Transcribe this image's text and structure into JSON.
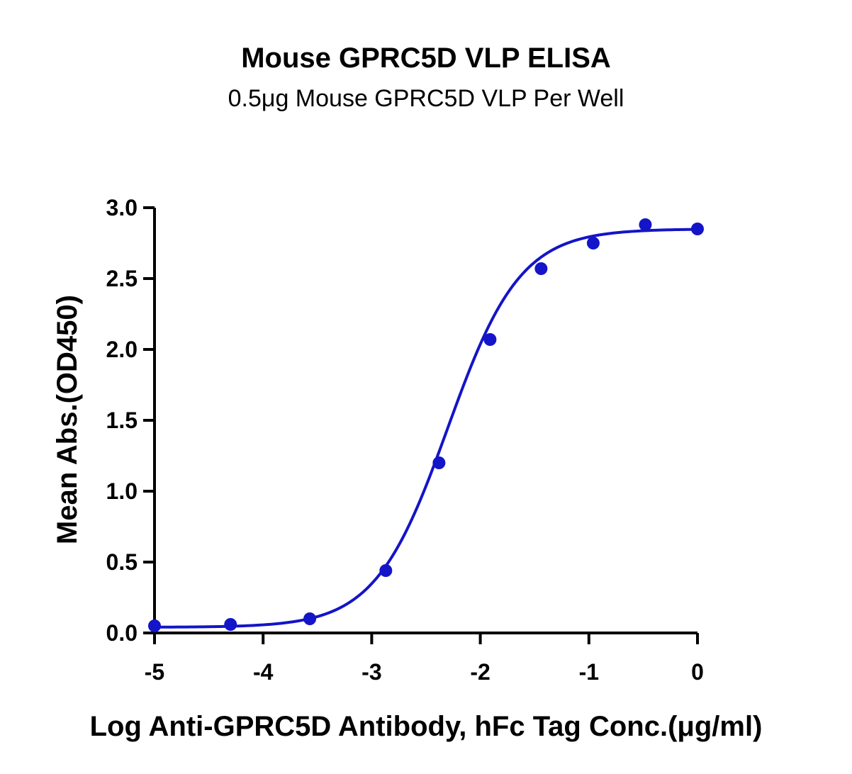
{
  "chart_data": {
    "type": "scatter",
    "title": "Mouse GPRC5D VLP ELISA",
    "subtitle": "0.5μg Mouse GPRC5D VLP Per Well",
    "xlabel": "Log Anti-GPRC5D Antibody, hFc Tag Conc.(μg/ml)",
    "ylabel": "Mean Abs.(OD450)",
    "xlim": [
      -5,
      0
    ],
    "ylim": [
      0,
      3
    ],
    "x_ticks": [
      -5,
      -4,
      -3,
      -2,
      -1,
      0
    ],
    "x_tick_labels": [
      "-5",
      "-4",
      "-3",
      "-2",
      "-1",
      "0"
    ],
    "y_ticks": [
      0,
      0.5,
      1,
      1.5,
      2,
      2.5,
      3
    ],
    "y_tick_labels": [
      "0.0",
      "0.5",
      "1.0",
      "1.5",
      "2.0",
      "2.5",
      "3.0"
    ],
    "grid": false,
    "color": "#1414c8",
    "series": [
      {
        "points": [
          {
            "x": -5.0,
            "y": 0.05
          },
          {
            "x": -4.3,
            "y": 0.06
          },
          {
            "x": -3.57,
            "y": 0.1
          },
          {
            "x": -2.87,
            "y": 0.44
          },
          {
            "x": -2.38,
            "y": 1.2
          },
          {
            "x": -1.91,
            "y": 2.07
          },
          {
            "x": -1.44,
            "y": 2.57
          },
          {
            "x": -0.96,
            "y": 2.75
          },
          {
            "x": -0.48,
            "y": 2.88
          },
          {
            "x": 0.0,
            "y": 2.85
          }
        ],
        "fit": {
          "model": "4PL",
          "bottom": 0.04,
          "top": 2.85,
          "logEC50": -2.3,
          "hill": 1.3
        }
      }
    ]
  }
}
